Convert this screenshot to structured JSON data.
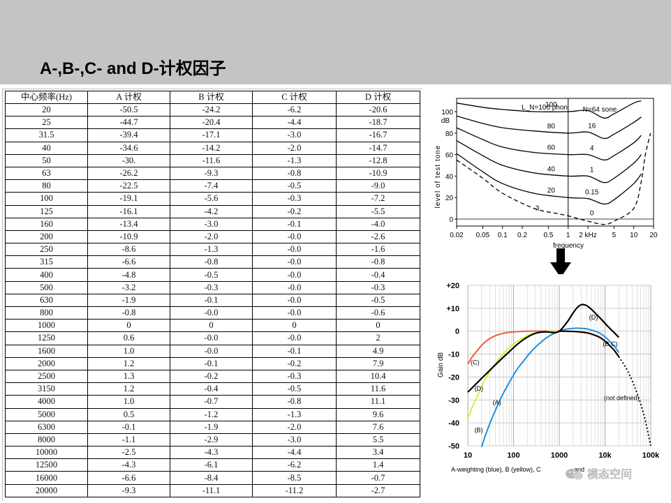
{
  "slide": {
    "title": "A-,B-,C- and D-计权因子"
  },
  "table": {
    "headers": [
      "中心频率(Hz)",
      "A 计权",
      "B 计权",
      "C 计权",
      "D 计权"
    ],
    "rows": [
      [
        "20",
        "-50.5",
        "-24.2",
        "-6.2",
        "-20.6"
      ],
      [
        "25",
        "-44.7",
        "-20.4",
        "-4.4",
        "-18.7"
      ],
      [
        "31.5",
        "-39.4",
        "-17.1",
        "-3.0",
        "-16.7"
      ],
      [
        "40",
        "-34.6",
        "-14.2",
        "-2.0",
        "-14.7"
      ],
      [
        "50",
        "-30.",
        "-11.6",
        "-1.3",
        "-12.8"
      ],
      [
        "63",
        "-26.2",
        "-9.3",
        "-0.8",
        "-10.9"
      ],
      [
        "80",
        "-22.5",
        "-7.4",
        "-0.5",
        "-9.0"
      ],
      [
        "100",
        "-19.1",
        "-5.6",
        "-0.3",
        "-7.2"
      ],
      [
        "125",
        "-16.1",
        "-4.2",
        "-0.2",
        "-5.5"
      ],
      [
        "160",
        "-13.4",
        "-3.0",
        "-0.1",
        "-4.0"
      ],
      [
        "200",
        "-10.9",
        "-2.0",
        "-0.0",
        "-2.6"
      ],
      [
        "250",
        "-8.6",
        "-1.3",
        "-0.0",
        "-1.6"
      ],
      [
        "315",
        "-6.6",
        "-0.8",
        "-0.0",
        "-0.8"
      ],
      [
        "400",
        "-4.8",
        "-0.5",
        "-0.0",
        "-0.4"
      ],
      [
        "500",
        "-3.2",
        "-0.3",
        "-0.0",
        "-0.3"
      ],
      [
        "630",
        "-1.9",
        "-0.1",
        "-0.0",
        "-0.5"
      ],
      [
        "800",
        "-0.8",
        "-0.0",
        "-0.0",
        "-0.6"
      ],
      [
        "1000",
        "0",
        "0",
        "0",
        "0"
      ],
      [
        "1250",
        "0.6",
        "-0.0",
        "-0.0",
        "2"
      ],
      [
        "1600",
        "1.0",
        "-0.0",
        "-0.1",
        "4.9"
      ],
      [
        "2000",
        "1.2",
        "-0.1",
        "-0.2",
        "7.9"
      ],
      [
        "2500",
        "1.3",
        "-0.2",
        "-0.3",
        "10.4"
      ],
      [
        "3150",
        "1.2",
        "-0.4",
        "-0.5",
        "11.6"
      ],
      [
        "4000",
        "1.0",
        "-0.7",
        "-0.8",
        "11.1"
      ],
      [
        "5000",
        "0.5",
        "-1.2",
        "-1.3",
        "9.6"
      ],
      [
        "6300",
        "-0.1",
        "-1.9",
        "-2.0",
        "7.6"
      ],
      [
        "8000",
        "-1.1",
        "-2.9",
        "-3.0",
        "5.5"
      ],
      [
        "10000",
        "-2.5",
        "-4.3",
        "-4.4",
        "3.4"
      ],
      [
        "12500",
        "-4.3",
        "-6.1",
        "-6.2",
        "1.4"
      ],
      [
        "16000",
        "-6.6",
        "-8.4",
        "-8.5",
        "-0.7"
      ],
      [
        "20000",
        "-9.3",
        "-11.1",
        "-11.2",
        "-2.7"
      ]
    ]
  },
  "chart_data": [
    {
      "type": "line",
      "title": "",
      "xlabel": "frequency",
      "ylabel": "level of test tone",
      "y_unit": "dB",
      "x_scale": "log",
      "x_ticks": [
        "0.02",
        "0.05",
        "0.1",
        "0.2",
        "0.5",
        "1",
        "2 kHz",
        "5",
        "10",
        "20"
      ],
      "y_ticks": [
        "100",
        "80",
        "60",
        "40",
        "20",
        "0"
      ],
      "ylim": [
        -5,
        110
      ],
      "header_labels": [
        "L_N=100 phon",
        "N=64 sone"
      ],
      "series": [
        {
          "label": "100",
          "sone_label": "",
          "x": [
            0.02,
            0.05,
            0.1,
            0.3,
            1,
            2,
            3.5,
            5,
            10,
            13
          ],
          "y": [
            108,
            104,
            102,
            100,
            100,
            101,
            94,
            98,
            108,
            110
          ]
        },
        {
          "label": "80",
          "sone_label": "16",
          "x": [
            0.02,
            0.05,
            0.1,
            0.3,
            1,
            2,
            3.5,
            5,
            10,
            13
          ],
          "y": [
            96,
            89,
            85,
            82,
            80,
            81,
            75,
            79,
            90,
            95
          ]
        },
        {
          "label": "60",
          "sone_label": "4",
          "x": [
            0.02,
            0.05,
            0.1,
            0.3,
            1,
            2,
            3.5,
            5,
            10,
            13
          ],
          "y": [
            85,
            74,
            67,
            62,
            60,
            60,
            55,
            59,
            71,
            78
          ]
        },
        {
          "label": "40",
          "sone_label": "1",
          "x": [
            0.02,
            0.05,
            0.1,
            0.3,
            1,
            2,
            3.5,
            5,
            10,
            13
          ],
          "y": [
            73,
            59,
            50,
            43,
            40,
            40,
            34,
            38,
            52,
            60
          ]
        },
        {
          "label": "20",
          "sone_label": "0.15",
          "x": [
            0.02,
            0.05,
            0.1,
            0.3,
            1,
            2,
            3.5,
            5,
            10,
            13
          ],
          "y": [
            61,
            44,
            33,
            24,
            20,
            19,
            14,
            18,
            33,
            42
          ]
        },
        {
          "label": "3",
          "sone_label": "0",
          "dashed": true,
          "x": [
            0.02,
            0.05,
            0.1,
            0.3,
            0.7,
            1,
            2,
            3.5,
            5,
            10,
            13,
            15,
            18
          ],
          "y": [
            55,
            38,
            24,
            10,
            5,
            3,
            -2,
            -5,
            -2,
            10,
            35,
            60,
            80
          ]
        }
      ]
    },
    {
      "type": "line",
      "title": "",
      "xlabel": "A-weighting (blue), B (yellow), C",
      "xlabel_tail": "and",
      "ylabel": "Gain dB",
      "x_scale": "log",
      "x_ticks": [
        "10",
        "100",
        "1000",
        "10k",
        "100k"
      ],
      "y_ticks": [
        "+20",
        "+10",
        "0",
        "-10",
        "-20",
        "-30",
        "-40",
        "-50"
      ],
      "ylim": [
        -50,
        20
      ],
      "xlim": [
        10,
        100000
      ],
      "annotation": "(not defined)",
      "colors": {
        "A": "#1e8fe0",
        "B": "#e2ea3a",
        "C": "#e8603a",
        "D": "#000000"
      },
      "series": [
        {
          "name": "(A)",
          "key": "A",
          "x": [
            20,
            25,
            31.5,
            40,
            50,
            63,
            80,
            100,
            125,
            160,
            200,
            250,
            315,
            400,
            500,
            630,
            800,
            1000,
            1250,
            1600,
            2000,
            2500,
            3150,
            4000,
            5000,
            6300,
            8000,
            10000,
            12500,
            16000,
            20000
          ],
          "y": [
            -50.5,
            -44.7,
            -39.4,
            -34.6,
            -30.2,
            -26.2,
            -22.5,
            -19.1,
            -16.1,
            -13.4,
            -10.9,
            -8.6,
            -6.6,
            -4.8,
            -3.2,
            -1.9,
            -0.8,
            0,
            0.6,
            1.0,
            1.2,
            1.3,
            1.2,
            1.0,
            0.5,
            -0.1,
            -1.1,
            -2.5,
            -4.3,
            -6.6,
            -9.3
          ]
        },
        {
          "name": "(B)",
          "key": "B",
          "x": [
            10,
            12.5,
            16,
            20,
            25,
            31.5,
            40,
            50,
            63,
            80,
            100,
            125,
            160,
            200,
            250,
            315,
            400,
            500,
            630,
            800,
            1000
          ],
          "y": [
            -38.2,
            -33.2,
            -28.5,
            -24.2,
            -20.4,
            -17.1,
            -14.2,
            -11.6,
            -9.3,
            -7.4,
            -5.6,
            -4.2,
            -3.0,
            -2.0,
            -1.3,
            -0.8,
            -0.5,
            -0.3,
            -0.1,
            -0.0,
            0
          ]
        },
        {
          "name": "(C)",
          "key": "C",
          "x": [
            10,
            12.5,
            16,
            20,
            25,
            31.5,
            40,
            50,
            63,
            80,
            100,
            200,
            500,
            1000,
            2000,
            4000,
            6300,
            8000,
            10000,
            12500,
            16000,
            20000
          ],
          "y": [
            -14.3,
            -11.2,
            -8.5,
            -6.2,
            -4.4,
            -3.0,
            -2.0,
            -1.3,
            -0.8,
            -0.5,
            -0.3,
            -0.0,
            -0.0,
            0,
            -0.2,
            -0.8,
            -2.0,
            -3.0,
            -4.4,
            -6.2,
            -8.5,
            -11.2
          ]
        },
        {
          "name": "(D)",
          "key": "D",
          "x": [
            10,
            20,
            31.5,
            50,
            80,
            125,
            200,
            315,
            500,
            800,
            1000,
            1250,
            1600,
            2000,
            2500,
            3150,
            4000,
            5000,
            6300,
            8000,
            10000,
            12500,
            16000,
            20000
          ],
          "y": [
            -26.6,
            -20.6,
            -16.7,
            -12.8,
            -9.0,
            -5.5,
            -2.6,
            -0.8,
            -0.3,
            -0.6,
            0,
            2,
            4.9,
            7.9,
            10.4,
            11.6,
            11.1,
            9.6,
            7.6,
            5.5,
            3.4,
            1.4,
            -0.7,
            -2.7
          ]
        },
        {
          "name": "(B,C)",
          "key": "BC",
          "x": [
            1000,
            2000,
            4000,
            6300,
            8000,
            10000,
            12500,
            16000,
            20000
          ],
          "y": [
            0,
            -0.1,
            -0.7,
            -1.9,
            -2.9,
            -4.3,
            -6.1,
            -8.4,
            -11.1
          ]
        },
        {
          "name": "",
          "key": "undef",
          "dotted": true,
          "x": [
            20000,
            25000,
            31500,
            40000,
            50000,
            63000,
            80000,
            100000
          ],
          "y": [
            -11.1,
            -14,
            -17.5,
            -22,
            -27,
            -33,
            -41,
            -50
          ]
        }
      ]
    }
  ],
  "watermark": {
    "text": "模态空间"
  }
}
